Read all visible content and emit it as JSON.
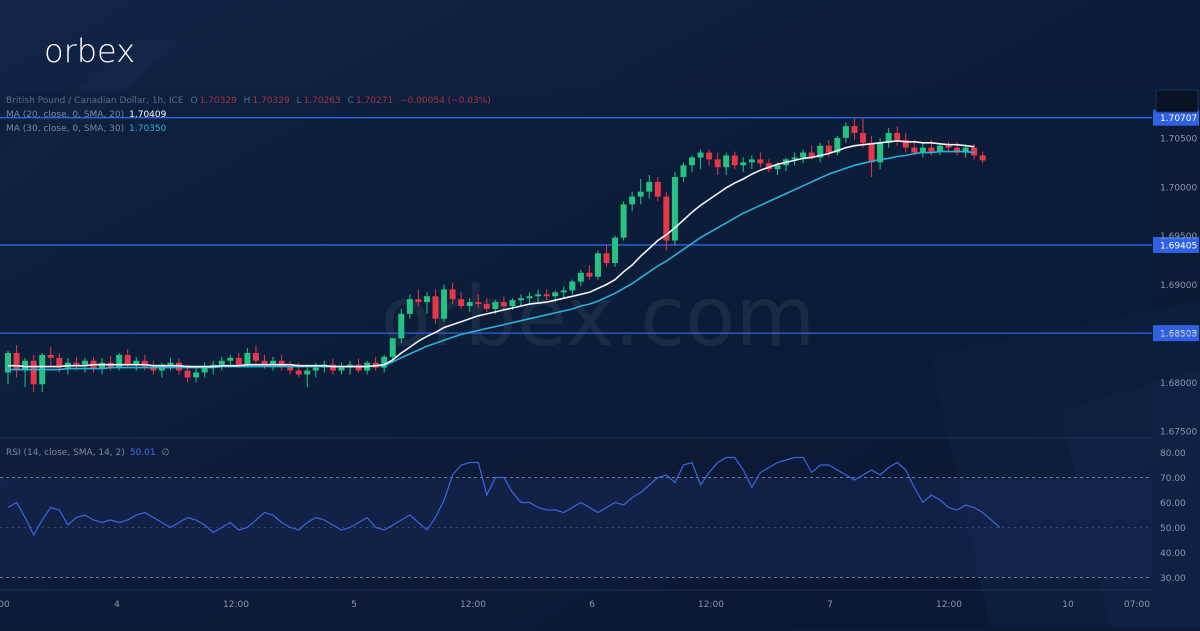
{
  "brand": {
    "logo_text": "orbex",
    "watermark_text": "orbex.com"
  },
  "colors": {
    "background": "#0c1a33",
    "chart_bg": "#0b1e3c",
    "rsi_band": "#14244c",
    "up": "#26c281",
    "down": "#e5364a",
    "ma20": "#f2f4f7",
    "ma30": "#29b2d6",
    "rsi_line": "#3f63e0",
    "hline": "#2f62e3",
    "axis_text": "#8a96ab",
    "accent_blue": "#2f62e3"
  },
  "legend": {
    "symbol": "British Pound / Canadian Dollar, 1h, ICE",
    "ohlc": {
      "o_label": "O",
      "o": "1.70329",
      "h_label": "H",
      "h": "1.70329",
      "l_label": "L",
      "l": "1.70263",
      "c_label": "C",
      "c": "1.70271",
      "chg": "−0.00054 (−0.03%)"
    },
    "ma20_label": "MA (20, close, 0, SMA, 20)",
    "ma20_value": "1.70409",
    "ma30_label": "MA (30, close, 0, SMA, 30)",
    "ma30_value": "1.70350"
  },
  "rsi_legend": {
    "label": "RSI (14, close, SMA, 14, 2)",
    "value": "50.01",
    "extra": "∅"
  },
  "chart_data": {
    "type": "candlestick",
    "title": "British Pound / Canadian Dollar, 1h, ICE",
    "ylim": [
      1.6743,
      1.7099
    ],
    "price_ticks": [
      "1.70500",
      "1.70000",
      "1.69500",
      "1.69000",
      "1.68500",
      "1.68000",
      "1.67500"
    ],
    "horizontal_levels": [
      "1.70707",
      "1.69405",
      "1.68503"
    ],
    "x_ticks": [
      "00",
      "4",
      "12:00",
      "5",
      "12:00",
      "6",
      "12:00",
      "7",
      "12:00",
      "10",
      "07:00"
    ],
    "candles": [
      [
        1.681,
        1.6832,
        1.6798,
        1.683
      ],
      [
        1.683,
        1.6838,
        1.6805,
        1.6812
      ],
      [
        1.6812,
        1.6825,
        1.6795,
        1.6822
      ],
      [
        1.6822,
        1.6828,
        1.679,
        1.6798
      ],
      [
        1.6798,
        1.683,
        1.679,
        1.6828
      ],
      [
        1.6828,
        1.6836,
        1.6815,
        1.6825
      ],
      [
        1.6825,
        1.683,
        1.681,
        1.6815
      ],
      [
        1.6815,
        1.6825,
        1.6808,
        1.682
      ],
      [
        1.682,
        1.6826,
        1.6812,
        1.6818
      ],
      [
        1.6818,
        1.6825,
        1.681,
        1.6822
      ],
      [
        1.6822,
        1.6826,
        1.681,
        1.6814
      ],
      [
        1.6814,
        1.6825,
        1.6808,
        1.682
      ],
      [
        1.682,
        1.6827,
        1.6812,
        1.6815
      ],
      [
        1.6815,
        1.683,
        1.6812,
        1.6828
      ],
      [
        1.6828,
        1.6834,
        1.6815,
        1.6818
      ],
      [
        1.6818,
        1.6826,
        1.6812,
        1.6822
      ],
      [
        1.6822,
        1.6828,
        1.6812,
        1.6816
      ],
      [
        1.6816,
        1.6822,
        1.6808,
        1.6812
      ],
      [
        1.6812,
        1.682,
        1.6805,
        1.6818
      ],
      [
        1.6818,
        1.6825,
        1.6812,
        1.682
      ],
      [
        1.682,
        1.6824,
        1.6808,
        1.6812
      ],
      [
        1.6812,
        1.6818,
        1.68,
        1.6805
      ],
      [
        1.6805,
        1.6815,
        1.68,
        1.681
      ],
      [
        1.681,
        1.682,
        1.6805,
        1.6815
      ],
      [
        1.6815,
        1.6822,
        1.6808,
        1.6818
      ],
      [
        1.6818,
        1.6826,
        1.6812,
        1.6822
      ],
      [
        1.6822,
        1.6828,
        1.6815,
        1.6825
      ],
      [
        1.6825,
        1.683,
        1.6815,
        1.6818
      ],
      [
        1.6818,
        1.6835,
        1.6815,
        1.683
      ],
      [
        1.683,
        1.6838,
        1.6818,
        1.6822
      ],
      [
        1.6822,
        1.6828,
        1.6814,
        1.6818
      ],
      [
        1.6818,
        1.6826,
        1.6812,
        1.6822
      ],
      [
        1.6822,
        1.6828,
        1.6812,
        1.6816
      ],
      [
        1.6816,
        1.6822,
        1.6808,
        1.6812
      ],
      [
        1.6812,
        1.682,
        1.6805,
        1.6808
      ],
      [
        1.6808,
        1.6818,
        1.6795,
        1.6812
      ],
      [
        1.6812,
        1.682,
        1.6805,
        1.6815
      ],
      [
        1.6815,
        1.6822,
        1.681,
        1.6818
      ],
      [
        1.6818,
        1.6824,
        1.6808,
        1.6812
      ],
      [
        1.6812,
        1.682,
        1.6808,
        1.6815
      ],
      [
        1.6815,
        1.6822,
        1.6808,
        1.6818
      ],
      [
        1.6818,
        1.6824,
        1.681,
        1.6812
      ],
      [
        1.6812,
        1.6822,
        1.6808,
        1.682
      ],
      [
        1.682,
        1.6826,
        1.6812,
        1.6815
      ],
      [
        1.6815,
        1.6828,
        1.681,
        1.6826
      ],
      [
        1.6826,
        1.6845,
        1.682,
        1.6845
      ],
      [
        1.6845,
        1.6875,
        1.684,
        1.687
      ],
      [
        1.687,
        1.689,
        1.6865,
        1.6885
      ],
      [
        1.6885,
        1.6895,
        1.6878,
        1.6882
      ],
      [
        1.6882,
        1.6892,
        1.687,
        1.6888
      ],
      [
        1.6888,
        1.6895,
        1.686,
        1.6865
      ],
      [
        1.6865,
        1.69,
        1.6862,
        1.6895
      ],
      [
        1.6895,
        1.6902,
        1.688,
        1.6885
      ],
      [
        1.6885,
        1.6892,
        1.6875,
        1.6878
      ],
      [
        1.6878,
        1.6886,
        1.6872,
        1.6882
      ],
      [
        1.6882,
        1.689,
        1.6876,
        1.688
      ],
      [
        1.688,
        1.6886,
        1.6872,
        1.6875
      ],
      [
        1.6875,
        1.6884,
        1.687,
        1.6882
      ],
      [
        1.6882,
        1.6888,
        1.6875,
        1.6878
      ],
      [
        1.6878,
        1.6886,
        1.6874,
        1.6884
      ],
      [
        1.6884,
        1.689,
        1.6878,
        1.6886
      ],
      [
        1.6886,
        1.6892,
        1.688,
        1.6888
      ],
      [
        1.6888,
        1.6895,
        1.6882,
        1.689
      ],
      [
        1.689,
        1.6895,
        1.6884,
        1.6888
      ],
      [
        1.6888,
        1.6894,
        1.6882,
        1.6892
      ],
      [
        1.6892,
        1.6898,
        1.6886,
        1.6894
      ],
      [
        1.6894,
        1.6905,
        1.689,
        1.6903
      ],
      [
        1.6903,
        1.6915,
        1.6898,
        1.6912
      ],
      [
        1.6912,
        1.692,
        1.6905,
        1.6908
      ],
      [
        1.6908,
        1.6935,
        1.6905,
        1.6932
      ],
      [
        1.6932,
        1.694,
        1.6918,
        1.6922
      ],
      [
        1.6922,
        1.695,
        1.6918,
        1.6948
      ],
      [
        1.6948,
        1.6985,
        1.6945,
        1.6982
      ],
      [
        1.6982,
        1.6995,
        1.6975,
        1.699
      ],
      [
        1.699,
        1.7008,
        1.6982,
        1.6995
      ],
      [
        1.6995,
        1.7012,
        1.6988,
        1.7005
      ],
      [
        1.7005,
        1.701,
        1.6985,
        1.699
      ],
      [
        1.699,
        1.6995,
        1.6935,
        1.6945
      ],
      [
        1.6945,
        1.7015,
        1.694,
        1.701
      ],
      [
        1.701,
        1.7025,
        1.7005,
        1.7022
      ],
      [
        1.7022,
        1.7032,
        1.7015,
        1.703
      ],
      [
        1.703,
        1.7038,
        1.7018,
        1.7035
      ],
      [
        1.7035,
        1.7038,
        1.7022,
        1.7028
      ],
      [
        1.7028,
        1.7035,
        1.7012,
        1.702
      ],
      [
        1.702,
        1.7035,
        1.7012,
        1.7032
      ],
      [
        1.7032,
        1.7036,
        1.7018,
        1.7022
      ],
      [
        1.7022,
        1.703,
        1.7015,
        1.7025
      ],
      [
        1.7025,
        1.7032,
        1.7018,
        1.7028
      ],
      [
        1.7028,
        1.7035,
        1.702,
        1.7024
      ],
      [
        1.7024,
        1.7028,
        1.7015,
        1.7018
      ],
      [
        1.7018,
        1.7025,
        1.7012,
        1.7022
      ],
      [
        1.7022,
        1.703,
        1.7016,
        1.7028
      ],
      [
        1.7028,
        1.7035,
        1.7022,
        1.703
      ],
      [
        1.703,
        1.7038,
        1.7024,
        1.7035
      ],
      [
        1.7035,
        1.7042,
        1.7028,
        1.703
      ],
      [
        1.703,
        1.7045,
        1.7025,
        1.7042
      ],
      [
        1.7042,
        1.7048,
        1.703,
        1.7035
      ],
      [
        1.7035,
        1.7052,
        1.7032,
        1.705
      ],
      [
        1.705,
        1.7066,
        1.7045,
        1.7062
      ],
      [
        1.7062,
        1.707,
        1.7048,
        1.7055
      ],
      [
        1.7055,
        1.707,
        1.704,
        1.7045
      ],
      [
        1.7045,
        1.7052,
        1.701,
        1.7025
      ],
      [
        1.7025,
        1.705,
        1.7018,
        1.7045
      ],
      [
        1.7045,
        1.706,
        1.704,
        1.7055
      ],
      [
        1.7055,
        1.7062,
        1.7042,
        1.7048
      ],
      [
        1.7048,
        1.7055,
        1.7035,
        1.704
      ],
      [
        1.704,
        1.7048,
        1.7032,
        1.7035
      ],
      [
        1.7035,
        1.7045,
        1.703,
        1.704
      ],
      [
        1.704,
        1.7048,
        1.7032,
        1.7036
      ],
      [
        1.7036,
        1.7045,
        1.7032,
        1.7042
      ],
      [
        1.7042,
        1.7046,
        1.7036,
        1.704
      ],
      [
        1.704,
        1.7046,
        1.7032,
        1.7035
      ],
      [
        1.7035,
        1.7044,
        1.703,
        1.704
      ],
      [
        1.704,
        1.7044,
        1.7028,
        1.7032
      ],
      [
        1.7032,
        1.7036,
        1.7024,
        1.7027
      ]
    ],
    "ma20": [
      1.6817,
      1.6817,
      1.6816,
      1.6816,
      1.6816,
      1.6816,
      1.6816,
      1.6817,
      1.6817,
      1.6817,
      1.6818,
      1.6818,
      1.6818,
      1.6818,
      1.6818,
      1.6818,
      1.6818,
      1.6817,
      1.6817,
      1.6817,
      1.6817,
      1.6816,
      1.6816,
      1.6816,
      1.6816,
      1.6817,
      1.6817,
      1.6817,
      1.6818,
      1.6818,
      1.6818,
      1.6818,
      1.6818,
      1.6818,
      1.6817,
      1.6817,
      1.6817,
      1.6817,
      1.6816,
      1.6816,
      1.6816,
      1.6816,
      1.6816,
      1.6817,
      1.6818,
      1.6823,
      1.683,
      1.6836,
      1.6842,
      1.6847,
      1.6851,
      1.6856,
      1.6859,
      1.6862,
      1.6865,
      1.6868,
      1.687,
      1.6872,
      1.6874,
      1.6876,
      1.6878,
      1.688,
      1.6881,
      1.6882,
      1.6884,
      1.6886,
      1.6888,
      1.689,
      1.6892,
      1.6896,
      1.69,
      1.6905,
      1.6913,
      1.692,
      1.6929,
      1.6937,
      1.6945,
      1.6951,
      1.6958,
      1.6966,
      1.6974,
      1.6981,
      1.6987,
      1.6993,
      1.6999,
      1.7004,
      1.7008,
      1.7013,
      1.7017,
      1.702,
      1.7023,
      1.7025,
      1.7027,
      1.7029,
      1.703,
      1.7032,
      1.7034,
      1.7037,
      1.704,
      1.7042,
      1.7043,
      1.7044,
      1.7045,
      1.7046,
      1.7047,
      1.7046,
      1.7046,
      1.7045,
      1.7045,
      1.7044,
      1.7043,
      1.7043,
      1.7042,
      1.7041
    ],
    "ma30": [
      1.6813,
      1.6813,
      1.6813,
      1.6813,
      1.6813,
      1.6813,
      1.6813,
      1.6814,
      1.6814,
      1.6814,
      1.6814,
      1.6814,
      1.6815,
      1.6815,
      1.6815,
      1.6815,
      1.6815,
      1.6815,
      1.6815,
      1.6815,
      1.6815,
      1.6815,
      1.6815,
      1.6815,
      1.6815,
      1.6816,
      1.6816,
      1.6816,
      1.6816,
      1.6816,
      1.6816,
      1.6816,
      1.6816,
      1.6816,
      1.6816,
      1.6816,
      1.6816,
      1.6816,
      1.6816,
      1.6816,
      1.6816,
      1.6816,
      1.6816,
      1.6817,
      1.6817,
      1.6821,
      1.6825,
      1.6829,
      1.6833,
      1.6837,
      1.684,
      1.6843,
      1.6846,
      1.6849,
      1.6851,
      1.6853,
      1.6855,
      1.6857,
      1.6859,
      1.6861,
      1.6863,
      1.6865,
      1.6867,
      1.6869,
      1.6871,
      1.6873,
      1.6875,
      1.6878,
      1.688,
      1.6883,
      1.6887,
      1.6891,
      1.6896,
      1.6901,
      1.6907,
      1.6913,
      1.6919,
      1.6924,
      1.693,
      1.6936,
      1.6942,
      1.6948,
      1.6953,
      1.6958,
      1.6963,
      1.6968,
      1.6973,
      1.6977,
      1.6981,
      1.6985,
      1.6989,
      1.6993,
      1.6997,
      1.7001,
      1.7005,
      1.7009,
      1.7013,
      1.7016,
      1.7019,
      1.7022,
      1.7024,
      1.7026,
      1.7028,
      1.7029,
      1.7031,
      1.7032,
      1.7034,
      1.7035,
      1.7035,
      1.7036,
      1.7036,
      1.7036,
      1.7036,
      1.7035
    ],
    "rsi": {
      "ylim": [
        25,
        85
      ],
      "ticks": [
        "80.00",
        "70.00",
        "60.00",
        "50.00",
        "40.00",
        "30.00"
      ],
      "levels": [
        70,
        30
      ],
      "values": [
        58,
        60,
        54,
        47,
        53,
        58,
        57,
        51,
        54,
        55,
        53,
        52,
        53,
        52,
        53,
        55,
        56,
        54,
        52,
        50,
        52,
        54,
        53,
        51,
        48,
        50,
        52,
        49,
        50,
        53,
        56,
        55,
        52,
        50,
        49,
        52,
        54,
        53,
        51,
        49,
        50,
        52,
        54,
        50,
        49,
        51,
        53,
        55,
        52,
        49,
        54,
        61,
        71,
        75,
        76,
        76,
        63,
        70,
        70,
        64,
        60,
        60,
        58,
        57,
        57,
        56,
        58,
        60,
        58,
        56,
        58,
        60,
        59,
        62,
        64,
        67,
        70,
        71,
        68,
        75,
        76,
        67,
        72,
        76,
        78,
        78,
        73,
        66,
        72,
        74,
        76,
        77,
        78,
        78,
        72,
        75,
        75,
        73,
        71,
        69,
        71,
        73,
        71,
        74,
        76,
        73,
        66,
        60,
        63,
        61,
        58,
        57,
        59,
        58,
        56,
        53,
        50
      ]
    }
  }
}
